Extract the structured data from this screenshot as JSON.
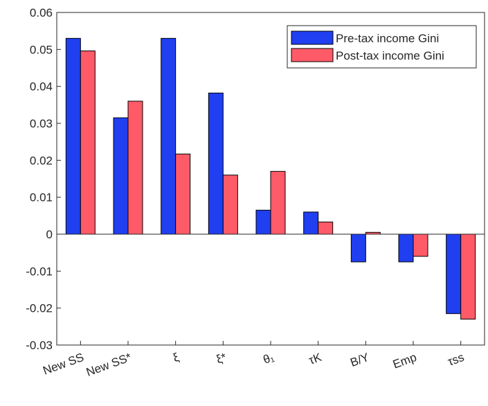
{
  "chart_data": {
    "type": "bar",
    "categories": [
      "New SS",
      "New SS*",
      "ξ",
      "ξ*",
      "θ₁",
      "τK",
      "B/Y",
      "Emp",
      "τss"
    ],
    "series": [
      {
        "name": "Pre-tax income Gini",
        "color": "#1f3ff0",
        "values": [
          0.053,
          0.0315,
          0.053,
          0.0382,
          0.0065,
          0.006,
          -0.0075,
          -0.0075,
          -0.0215
        ]
      },
      {
        "name": "Post-tax income Gini",
        "color": "#ff5a68",
        "values": [
          0.0496,
          0.036,
          0.0217,
          0.016,
          0.017,
          0.0033,
          0.0005,
          -0.006,
          -0.023
        ]
      }
    ],
    "ylim": [
      -0.03,
      0.06
    ],
    "yticks": [
      -0.03,
      -0.02,
      -0.01,
      0,
      0.01,
      0.02,
      0.03,
      0.04,
      0.05,
      0.06
    ],
    "legend": "upper right"
  }
}
